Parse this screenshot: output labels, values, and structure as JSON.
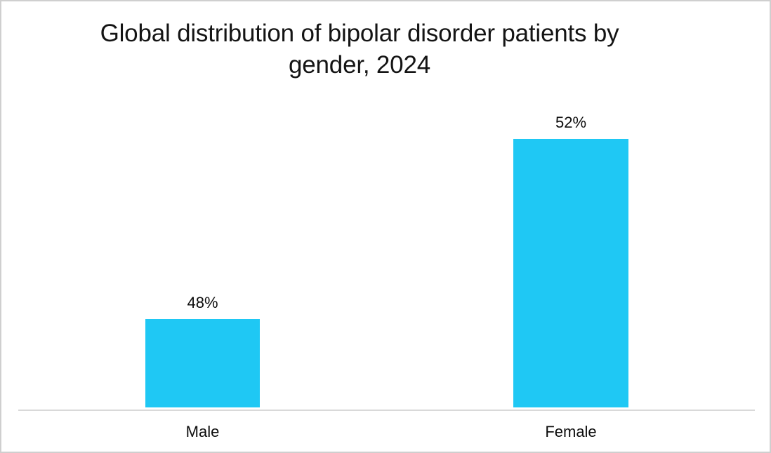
{
  "chart_data": {
    "type": "bar",
    "title": "Global distribution of bipolar disorder patients by gender, 2024",
    "title_lines": [
      "Global distribution of bipolar disorder patients by",
      "gender, 2024"
    ],
    "categories": [
      "Male",
      "Female"
    ],
    "values": [
      48,
      52
    ],
    "value_labels": [
      "48%",
      "52%"
    ],
    "xlabel": "",
    "ylabel": "",
    "ylim": [
      46,
      53
    ],
    "grid": false,
    "legend": false,
    "bar_color": "#1fc8f4",
    "axis_line_color": "#d9d9d9",
    "background_color": "#ffffff",
    "text_color": "#0d0d0d"
  }
}
